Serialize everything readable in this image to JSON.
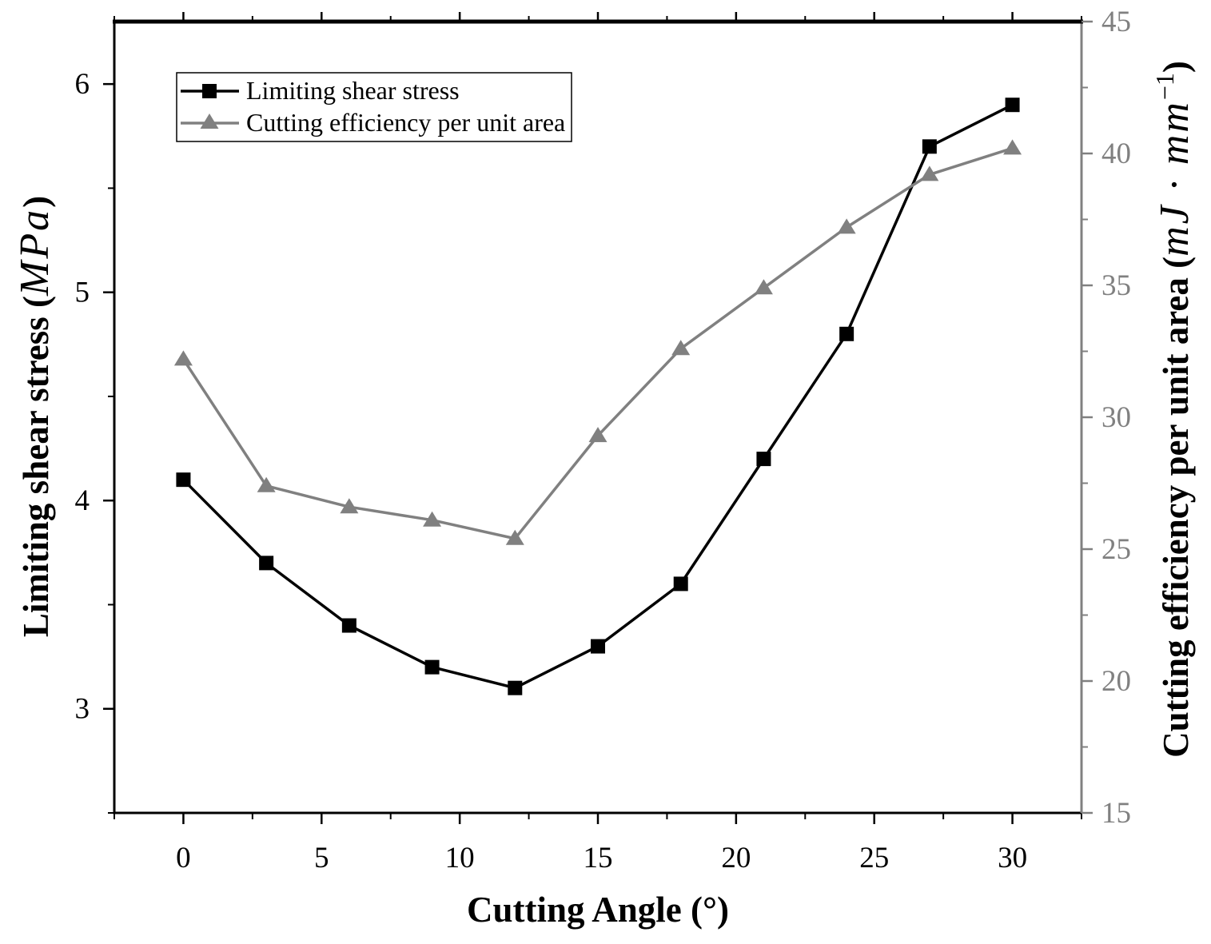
{
  "chart_data": {
    "type": "line",
    "xlabel": "Cutting Angle (°)",
    "ylabel": {
      "text": "Limiting shear stress (",
      "unit": "MPa",
      "close": ")"
    },
    "y2label": {
      "text": "Cutting efficiency per unit area (",
      "unit": "mJ · mm",
      "unit_exponent": "−1",
      "close": ")"
    },
    "xlim": [
      -2.5,
      32.5
    ],
    "xticks": [
      0,
      5,
      10,
      15,
      20,
      25,
      30
    ],
    "ylim": [
      2.5,
      6.3
    ],
    "yticks": [
      3,
      4,
      5,
      6
    ],
    "y2lim": [
      15,
      45
    ],
    "y2ticks": [
      15,
      20,
      25,
      30,
      35,
      40,
      45
    ],
    "y2_color": "#808080",
    "grid": false,
    "legend": "top-left",
    "x": [
      0,
      3,
      6,
      9,
      12,
      15,
      18,
      21,
      24,
      27,
      30
    ],
    "series": [
      {
        "name": "Limiting shear stress",
        "axis": 1,
        "marker_icon": "square-icon",
        "color": "#000000",
        "values": [
          4.1,
          3.7,
          3.4,
          3.2,
          3.1,
          3.3,
          3.6,
          4.2,
          4.8,
          5.7,
          5.9
        ]
      },
      {
        "name": "Cutting efficiency per unit area",
        "axis": 2,
        "marker_icon": "triangle-icon",
        "color": "#808080",
        "values": [
          32.2,
          27.4,
          26.6,
          26.1,
          25.4,
          29.3,
          32.6,
          34.9,
          37.2,
          39.2,
          40.2
        ]
      }
    ]
  }
}
